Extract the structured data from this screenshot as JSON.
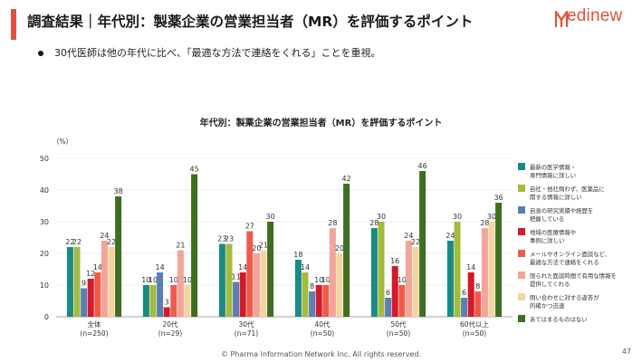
{
  "header": {
    "title": "調査結果｜年代別：製薬企業の営業担当者（MR）を評価するポイント",
    "accent_color": "#e0523f",
    "logo_text": "edinew"
  },
  "bullet": {
    "text": "30代医師は他の年代に比べ、「最適な方法で連絡をくれる」ことを重視。"
  },
  "chart_data": {
    "type": "bar",
    "title": "年代別：製薬企業の営業担当者（MR）を評価するポイント",
    "ylabel": "（%）",
    "ylim": [
      0,
      50
    ],
    "yticks": [
      0,
      10,
      20,
      30,
      40,
      50
    ],
    "categories": [
      {
        "label": "全体",
        "n": "(n=250)"
      },
      {
        "label": "20代",
        "n": "(n=29)"
      },
      {
        "label": "30代",
        "n": "(n=71)"
      },
      {
        "label": "40代",
        "n": "(n=50)"
      },
      {
        "label": "50代",
        "n": "(n=50)"
      },
      {
        "label": "60代以上",
        "n": "(n=50)"
      }
    ],
    "series": [
      {
        "name": "最新の医学情報・専門情報に詳しい",
        "legend_lines": [
          "最新の医学情報・",
          "専門情報に詳しい"
        ],
        "color": "#1b8a85",
        "values": [
          22,
          10,
          23,
          18,
          28,
          24
        ]
      },
      {
        "name": "自社・他社問わず、医薬品に関する情報に詳しい",
        "legend_lines": [
          "自社・他社問わず、医薬品に",
          "関する情報に詳しい"
        ],
        "color": "#a3bb3e",
        "values": [
          22,
          10,
          23,
          14,
          30,
          30
        ]
      },
      {
        "name": "自身の研究実績や経歴を把握している",
        "legend_lines": [
          "自身の研究実績や経歴を",
          "把握している"
        ],
        "color": "#5b7fb5",
        "values": [
          9,
          14,
          11,
          8,
          6,
          6
        ]
      },
      {
        "name": "地域の医療情報や事例に詳しい",
        "legend_lines": [
          "地域の医療情報や",
          "事例に詳しい"
        ],
        "color": "#d11a2a",
        "values": [
          12,
          3,
          14,
          10,
          16,
          14
        ]
      },
      {
        "name": "メールやオンライン面談など、最適な方法で連絡をくれる",
        "legend_lines": [
          "メールやオンライン面談など、",
          "最適な方法で連絡をくれる"
        ],
        "color": "#ef5a4a",
        "values": [
          14,
          10,
          27,
          10,
          10,
          8
        ]
      },
      {
        "name": "限られた面談時間で有用な情報を提供してくれる",
        "legend_lines": [
          "限られた面談時間で有用な情報を",
          "提供してくれる"
        ],
        "color": "#f4a49a",
        "values": [
          24,
          21,
          20,
          28,
          24,
          28
        ]
      },
      {
        "name": "問い合わせに対する返答が的確かつ迅速",
        "legend_lines": [
          "問い合わせに対する返答が",
          "的確かつ迅速"
        ],
        "color": "#f8d3a2",
        "values": [
          22,
          10,
          21,
          20,
          22,
          30
        ]
      },
      {
        "name": "あてはまるものはない",
        "legend_lines": [
          "あてはまるものはない"
        ],
        "color": "#3e6e22",
        "values": [
          38,
          45,
          30,
          42,
          46,
          36
        ]
      }
    ]
  },
  "footer": {
    "copyright": "© Pharma Information Network Inc.  All rights reserved.",
    "page": "47"
  }
}
